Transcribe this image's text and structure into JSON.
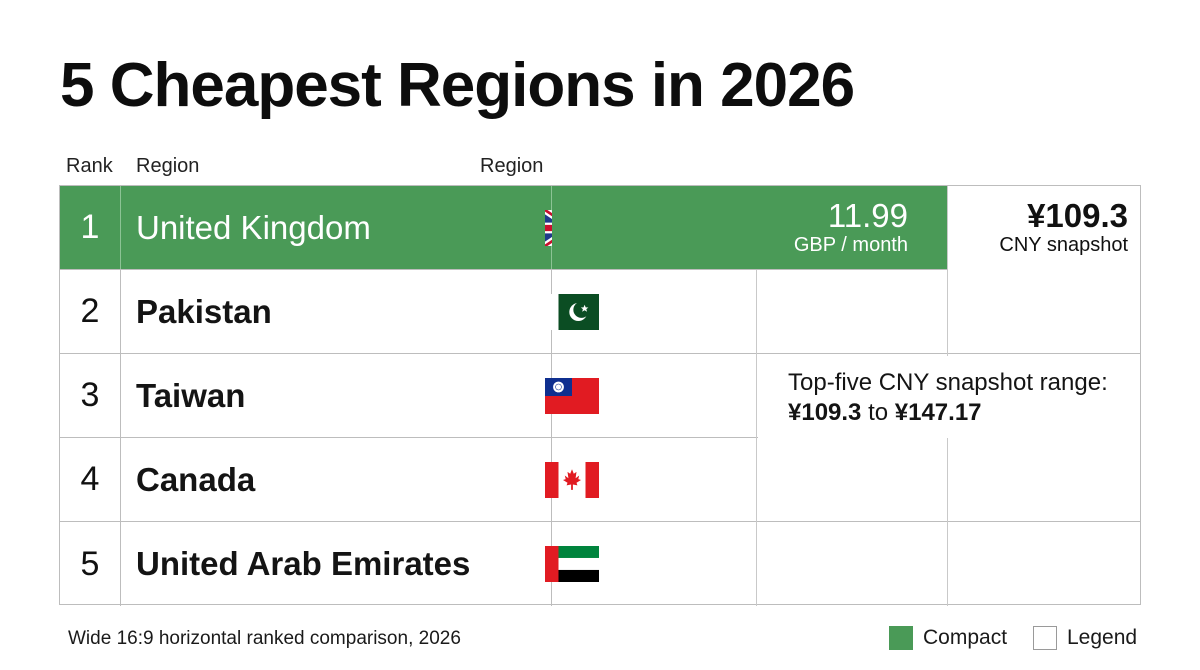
{
  "title": "5 Cheapest Regions in 2026",
  "columns": {
    "rank": "Rank",
    "region": "Region",
    "region2": "Region"
  },
  "chart_data": {
    "type": "bar",
    "title": "5 Cheapest Regions in 2026",
    "categories": [
      "United Kingdom",
      "Pakistan",
      "Taiwan",
      "Canada",
      "United Arab Emirates"
    ],
    "ranks": [
      "1",
      "2",
      "3",
      "4",
      "5"
    ],
    "flag_icons": [
      "uk-flag-icon",
      "pakistan-flag-icon",
      "taiwan-flag-icon",
      "canada-flag-icon",
      "uae-flag-icon"
    ],
    "highlight": {
      "rank": 1,
      "value": 11.99,
      "value_label": "11.99",
      "unit_label": "GBP / month",
      "cny_label": "¥109.3",
      "cny_unit_label": "CNY snapshot"
    },
    "note": {
      "line1": "Top-five CNY snapshot range:",
      "range_low": "¥109.3",
      "connector": "to",
      "range_high": "¥147.17"
    },
    "legend": [
      {
        "label": "Compact",
        "color": "#4a9a57"
      },
      {
        "label": "Legend",
        "color": "#ffffff"
      }
    ],
    "legend_placement": "bottom-right",
    "grid": true
  },
  "caption": "Wide 16:9 horizontal ranked comparison, 2026",
  "colors": {
    "accent": "#4a9a57",
    "border": "#bdbdbd"
  }
}
